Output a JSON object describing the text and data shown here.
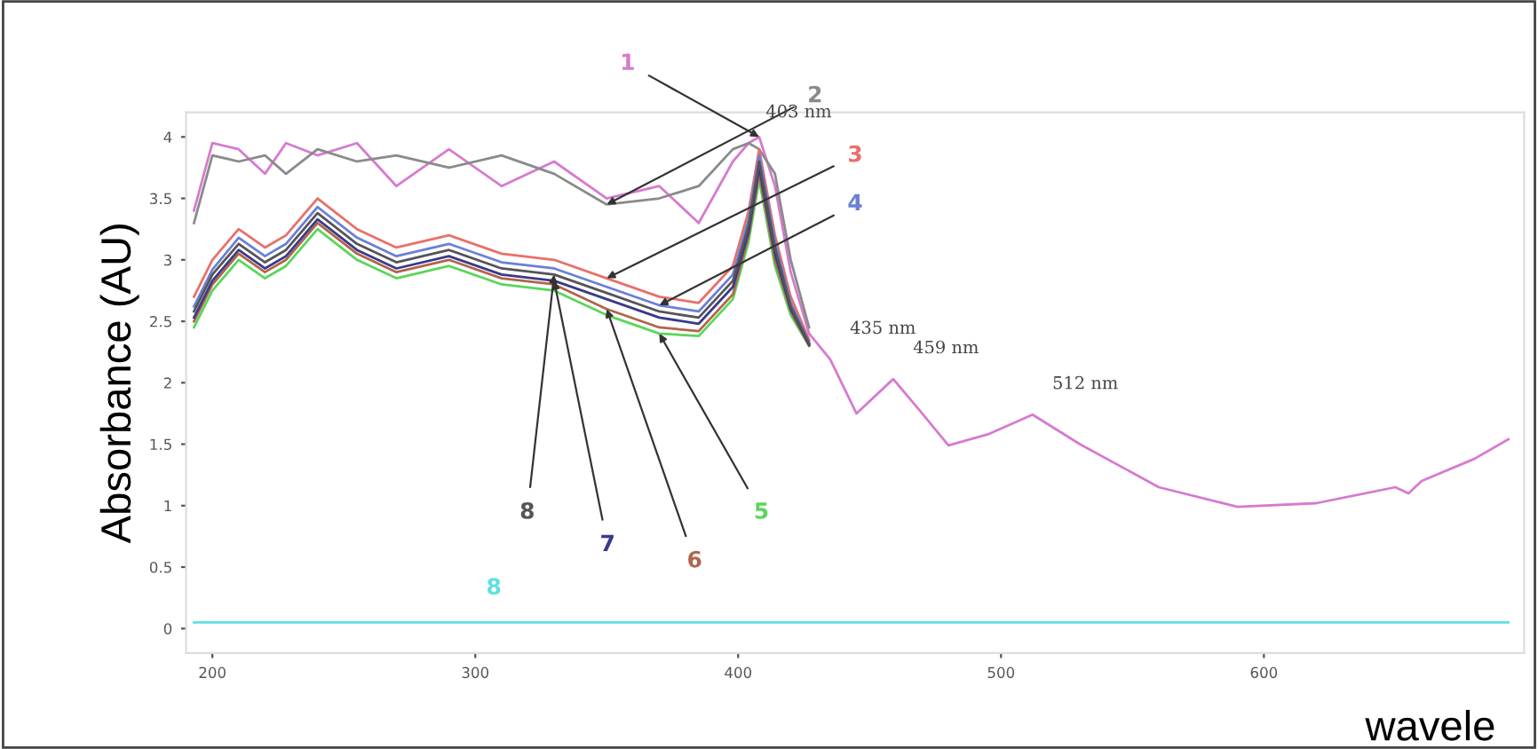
{
  "chart_data": {
    "type": "line",
    "xlabel": "wavele",
    "ylabel": "Absorbance (AU)",
    "x": [
      193,
      200,
      210,
      220,
      228,
      240,
      255,
      270,
      290,
      310,
      330,
      350,
      370,
      385,
      398,
      404,
      408,
      414,
      420,
      427,
      435,
      445,
      459,
      470,
      480,
      495,
      512,
      530,
      560,
      590,
      620,
      650,
      655,
      660,
      680,
      693
    ],
    "series": [
      {
        "name": "1",
        "color": "#d67ad0",
        "values": [
          3.4,
          3.95,
          3.9,
          3.7,
          3.95,
          3.85,
          3.95,
          3.6,
          3.9,
          3.6,
          3.8,
          3.5,
          3.6,
          3.3,
          3.8,
          3.95,
          4.0,
          3.6,
          2.9,
          2.4,
          2.19,
          1.75,
          2.03,
          1.75,
          1.49,
          1.58,
          1.74,
          1.5,
          1.15,
          0.99,
          1.02,
          1.15,
          1.1,
          1.2,
          1.38,
          1.54
        ]
      },
      {
        "name": "2",
        "color": "#8a8a8a",
        "values": [
          3.3,
          3.85,
          3.8,
          3.85,
          3.7,
          3.9,
          3.8,
          3.85,
          3.75,
          3.85,
          3.7,
          3.45,
          3.5,
          3.6,
          3.9,
          3.95,
          3.9,
          3.7,
          3.0,
          2.45,
          null,
          null,
          null,
          null,
          null,
          null,
          null,
          null,
          null,
          null,
          null,
          null,
          null,
          null,
          null,
          null
        ]
      },
      {
        "name": "3",
        "color": "#e8706a",
        "values": [
          2.7,
          3.0,
          3.25,
          3.1,
          3.2,
          3.5,
          3.25,
          3.1,
          3.2,
          3.05,
          3.0,
          2.85,
          2.7,
          2.65,
          2.95,
          3.4,
          3.9,
          3.2,
          2.7,
          2.35,
          null,
          null,
          null,
          null,
          null,
          null,
          null,
          null,
          null,
          null,
          null,
          null,
          null,
          null,
          null,
          null
        ]
      },
      {
        "name": "4",
        "color": "#6a7fd8",
        "values": [
          2.62,
          2.92,
          3.18,
          3.03,
          3.13,
          3.43,
          3.18,
          3.03,
          3.13,
          2.98,
          2.93,
          2.78,
          2.63,
          2.58,
          2.88,
          3.33,
          3.85,
          3.15,
          2.65,
          2.33,
          null,
          null,
          null,
          null,
          null,
          null,
          null,
          null,
          null,
          null,
          null,
          null,
          null,
          null,
          null,
          null
        ]
      },
      {
        "name": "5",
        "color": "#5ad65a",
        "values": [
          2.45,
          2.75,
          3.0,
          2.85,
          2.95,
          3.25,
          3.0,
          2.85,
          2.95,
          2.8,
          2.75,
          2.55,
          2.4,
          2.38,
          2.68,
          3.15,
          3.65,
          2.95,
          2.55,
          2.3,
          null,
          null,
          null,
          null,
          null,
          null,
          null,
          null,
          null,
          null,
          null,
          null,
          null,
          null,
          null,
          null
        ]
      },
      {
        "name": "6",
        "color": "#b0654a",
        "values": [
          2.5,
          2.8,
          3.05,
          2.9,
          3.0,
          3.3,
          3.05,
          2.9,
          3.0,
          2.85,
          2.8,
          2.6,
          2.45,
          2.42,
          2.72,
          3.2,
          3.7,
          3.0,
          2.58,
          2.3,
          null,
          null,
          null,
          null,
          null,
          null,
          null,
          null,
          null,
          null,
          null,
          null,
          null,
          null,
          null,
          null
        ]
      },
      {
        "name": "7",
        "color": "#3a3a8a",
        "values": [
          2.53,
          2.83,
          3.08,
          2.93,
          3.03,
          3.33,
          3.08,
          2.93,
          3.03,
          2.88,
          2.83,
          2.68,
          2.53,
          2.48,
          2.78,
          3.23,
          3.75,
          3.05,
          2.6,
          2.31,
          null,
          null,
          null,
          null,
          null,
          null,
          null,
          null,
          null,
          null,
          null,
          null,
          null,
          null,
          null,
          null
        ]
      },
      {
        "name": "8",
        "color": "#555555",
        "values": [
          2.58,
          2.88,
          3.13,
          2.98,
          3.08,
          3.38,
          3.13,
          2.98,
          3.08,
          2.93,
          2.88,
          2.73,
          2.58,
          2.53,
          2.83,
          3.28,
          3.8,
          3.1,
          2.62,
          2.32,
          null,
          null,
          null,
          null,
          null,
          null,
          null,
          null,
          null,
          null,
          null,
          null,
          null,
          null,
          null,
          null
        ]
      },
      {
        "name": "8",
        "color": "#5fe0e0",
        "values": [
          0.05,
          0.05,
          0.05,
          0.05,
          0.05,
          0.05,
          0.05,
          0.05,
          0.05,
          0.05,
          0.05,
          0.05,
          0.05,
          0.05,
          0.05,
          0.05,
          0.05,
          0.05,
          0.05,
          0.05,
          0.05,
          0.05,
          0.05,
          0.05,
          0.05,
          0.05,
          0.05,
          0.05,
          0.05,
          0.05,
          0.05,
          0.05,
          0.05,
          0.05,
          0.05,
          0.05
        ]
      }
    ],
    "annotations": [
      {
        "text": "403 nm",
        "x": 403,
        "y": 3.95
      },
      {
        "text": "435 nm",
        "x": 435,
        "y": 2.19
      },
      {
        "text": "459 nm",
        "x": 459,
        "y": 2.03
      },
      {
        "text": "512 nm",
        "x": 512,
        "y": 1.74
      }
    ],
    "xlim": [
      190,
      699
    ],
    "ylim": [
      -0.2,
      4.2
    ],
    "xticks": [
      200,
      300,
      400,
      500,
      600
    ],
    "yticks": [
      0,
      0.5,
      1,
      1.5,
      2,
      2.5,
      3,
      3.5,
      4
    ],
    "grid": false,
    "legend": false,
    "marker": "none",
    "line_style": "solid"
  }
}
